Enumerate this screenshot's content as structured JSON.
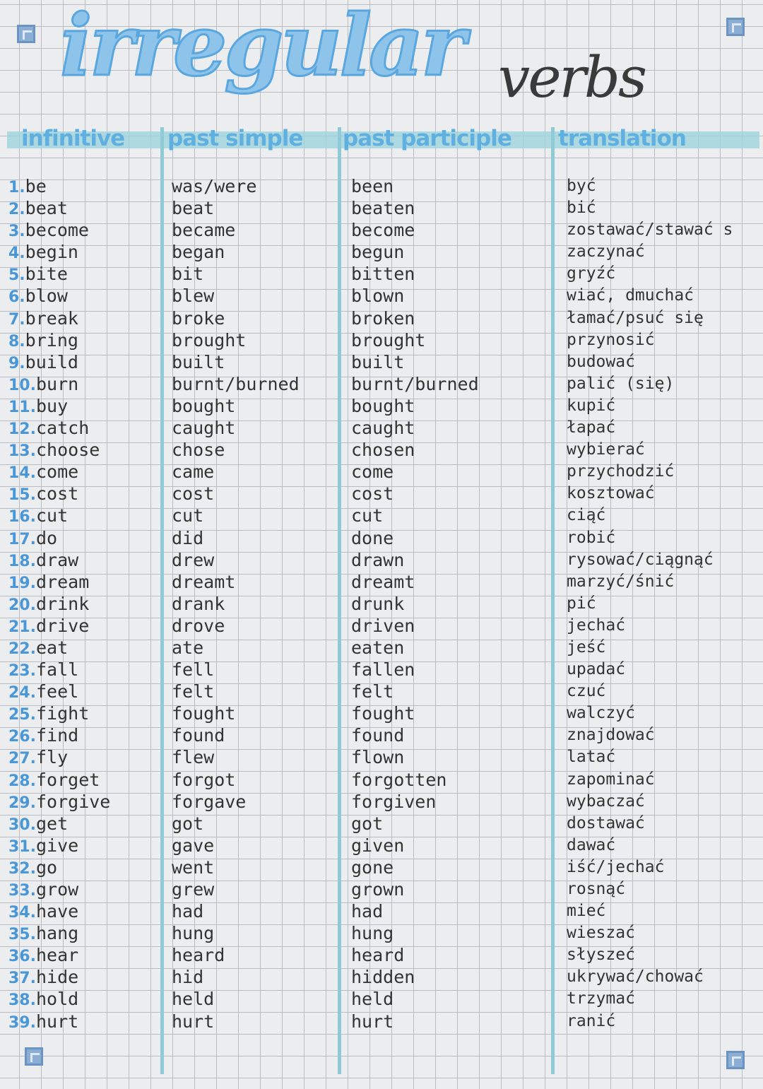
{
  "title": "irregular",
  "subtitle": "verbs",
  "headers": {
    "infinitive": "infinitive",
    "past_simple": "past simple",
    "past_participle": "past participle",
    "translation": "translation"
  },
  "colors": {
    "accent": "#5fb0e0",
    "ink": "#333333",
    "grid": "#b9bcc4"
  },
  "rows": [
    {
      "n": "1.",
      "inf": "be",
      "ps": "was/were",
      "pp": "been",
      "tr": "być"
    },
    {
      "n": "2.",
      "inf": "beat",
      "ps": "beat",
      "pp": "beaten",
      "tr": "bić"
    },
    {
      "n": "3.",
      "inf": "become",
      "ps": "became",
      "pp": "become",
      "tr": "zostawać/stawać s"
    },
    {
      "n": "4.",
      "inf": "begin",
      "ps": "began",
      "pp": "begun",
      "tr": "zaczynać"
    },
    {
      "n": "5.",
      "inf": "bite",
      "ps": "bit",
      "pp": "bitten",
      "tr": "gryźć"
    },
    {
      "n": "6.",
      "inf": "blow",
      "ps": "blew",
      "pp": "blown",
      "tr": "wiać, dmuchać"
    },
    {
      "n": "7.",
      "inf": "break",
      "ps": "broke",
      "pp": "broken",
      "tr": "łamać/psuć się"
    },
    {
      "n": "8.",
      "inf": "bring",
      "ps": "brought",
      "pp": "brought",
      "tr": "przynosić"
    },
    {
      "n": "9.",
      "inf": "build",
      "ps": "built",
      "pp": "built",
      "tr": "budować"
    },
    {
      "n": "10.",
      "inf": "burn",
      "ps": "burnt/burned",
      "pp": "burnt/burned",
      "tr": "palić (się)"
    },
    {
      "n": "11.",
      "inf": "buy",
      "ps": "bought",
      "pp": "bought",
      "tr": "kupić"
    },
    {
      "n": "12.",
      "inf": "catch",
      "ps": "caught",
      "pp": "caught",
      "tr": "łapać"
    },
    {
      "n": "13.",
      "inf": "choose",
      "ps": "chose",
      "pp": "chosen",
      "tr": "wybierać"
    },
    {
      "n": "14.",
      "inf": "come",
      "ps": "came",
      "pp": "come",
      "tr": "przychodzić"
    },
    {
      "n": "15.",
      "inf": "cost",
      "ps": "cost",
      "pp": "cost",
      "tr": "kosztować"
    },
    {
      "n": "16.",
      "inf": "cut",
      "ps": "cut",
      "pp": "cut",
      "tr": "ciąć"
    },
    {
      "n": "17.",
      "inf": "do",
      "ps": "did",
      "pp": "done",
      "tr": "robić"
    },
    {
      "n": "18.",
      "inf": "draw",
      "ps": "drew",
      "pp": "drawn",
      "tr": "rysować/ciągnąć"
    },
    {
      "n": "19.",
      "inf": "dream",
      "ps": "dreamt",
      "pp": "dreamt",
      "tr": "marzyć/śnić"
    },
    {
      "n": "20.",
      "inf": "drink",
      "ps": "drank",
      "pp": "drunk",
      "tr": "pić"
    },
    {
      "n": "21.",
      "inf": "drive",
      "ps": "drove",
      "pp": "driven",
      "tr": "jechać"
    },
    {
      "n": "22.",
      "inf": "eat",
      "ps": "ate",
      "pp": "eaten",
      "tr": "jeść"
    },
    {
      "n": "23.",
      "inf": "fall",
      "ps": "fell",
      "pp": "fallen",
      "tr": "upadać"
    },
    {
      "n": "24.",
      "inf": "feel",
      "ps": "felt",
      "pp": "felt",
      "tr": "czuć"
    },
    {
      "n": "25.",
      "inf": "fight",
      "ps": "fought",
      "pp": "fought",
      "tr": "walczyć"
    },
    {
      "n": "26.",
      "inf": "find",
      "ps": "found",
      "pp": "found",
      "tr": "znajdować"
    },
    {
      "n": "27.",
      "inf": "fly",
      "ps": "flew",
      "pp": "flown",
      "tr": "latać"
    },
    {
      "n": "28.",
      "inf": "forget",
      "ps": "forgot",
      "pp": "forgotten",
      "tr": "zapominać"
    },
    {
      "n": "29.",
      "inf": "forgive",
      "ps": "forgave",
      "pp": "forgiven",
      "tr": "wybaczać"
    },
    {
      "n": "30.",
      "inf": "get",
      "ps": "got",
      "pp": "got",
      "tr": "dostawać"
    },
    {
      "n": "31.",
      "inf": "give",
      "ps": "gave",
      "pp": "given",
      "tr": "dawać"
    },
    {
      "n": "32.",
      "inf": "go",
      "ps": "went",
      "pp": "gone",
      "tr": "iść/jechać"
    },
    {
      "n": "33.",
      "inf": "grow",
      "ps": "grew",
      "pp": "grown",
      "tr": "rosnąć"
    },
    {
      "n": "34.",
      "inf": "have",
      "ps": "had",
      "pp": "had",
      "tr": "mieć"
    },
    {
      "n": "35.",
      "inf": "hang",
      "ps": "hung",
      "pp": "hung",
      "tr": "wieszać"
    },
    {
      "n": "36.",
      "inf": "hear",
      "ps": "heard",
      "pp": "heard",
      "tr": "słyszeć"
    },
    {
      "n": "37.",
      "inf": "hide",
      "ps": "hid",
      "pp": "hidden",
      "tr": "ukrywać/chować"
    },
    {
      "n": "38.",
      "inf": "hold",
      "ps": "held",
      "pp": "held",
      "tr": "trzymać"
    },
    {
      "n": "39.",
      "inf": "hurt",
      "ps": "hurt",
      "pp": "hurt",
      "tr": "ranić"
    }
  ]
}
